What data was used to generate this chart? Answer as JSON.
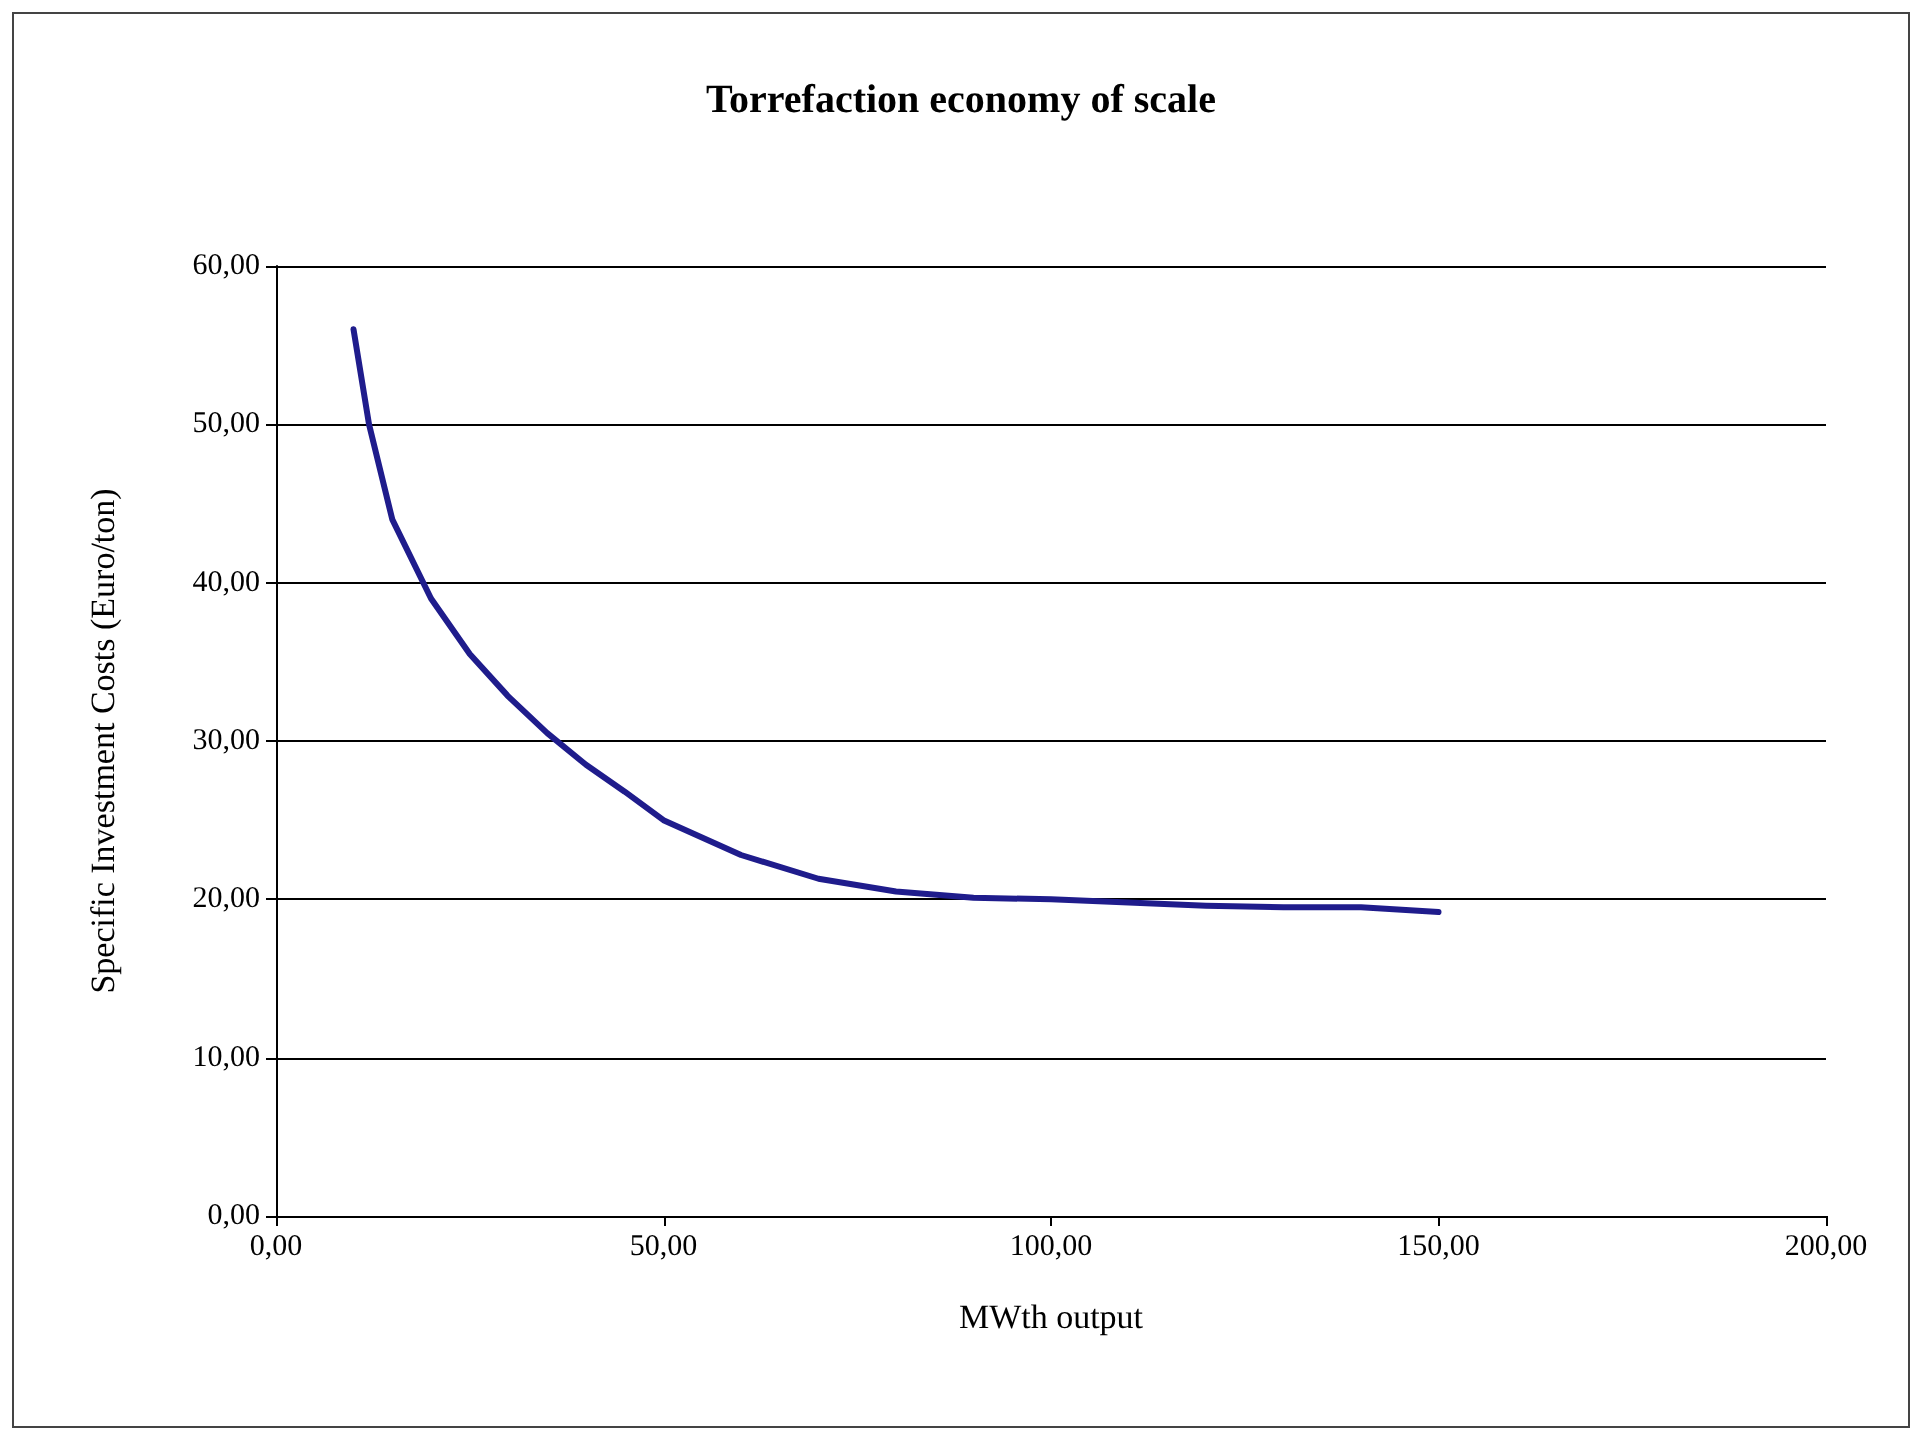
{
  "chart_data": {
    "type": "line",
    "title": "Torrefaction economy of scale",
    "xlabel": "MWth output",
    "ylabel": "Specific Investment Costs (Euro/ton)",
    "x": [
      10,
      12,
      15,
      20,
      25,
      30,
      35,
      40,
      45,
      50,
      60,
      70,
      80,
      90,
      100,
      110,
      120,
      130,
      140,
      150
    ],
    "series": [
      {
        "color": "#1f1c8c",
        "values": [
          56,
          50,
          44,
          39,
          35.5,
          32.8,
          30.5,
          28.5,
          26.8,
          25,
          22.8,
          21.3,
          20.5,
          20.1,
          20,
          19.8,
          19.6,
          19.5,
          19.5,
          19.2
        ]
      }
    ],
    "xlim": [
      0,
      200
    ],
    "xticks": [
      {
        "value": 0,
        "label": "0,00"
      },
      {
        "value": 50,
        "label": "50,00"
      },
      {
        "value": 100,
        "label": "100,00"
      },
      {
        "value": 150,
        "label": "150,00"
      },
      {
        "value": 200,
        "label": "200,00"
      }
    ],
    "ylim": [
      0,
      60
    ],
    "yticks": [
      {
        "value": 0,
        "label": "0,00"
      },
      {
        "value": 10,
        "label": "10,00"
      },
      {
        "value": 20,
        "label": "20,00"
      },
      {
        "value": 30,
        "label": "30,00"
      },
      {
        "value": 40,
        "label": "40,00"
      },
      {
        "value": 50,
        "label": "50,00"
      },
      {
        "value": 60,
        "label": "60,00"
      }
    ],
    "grid": "y",
    "marker": "none",
    "line_style": "solid"
  }
}
